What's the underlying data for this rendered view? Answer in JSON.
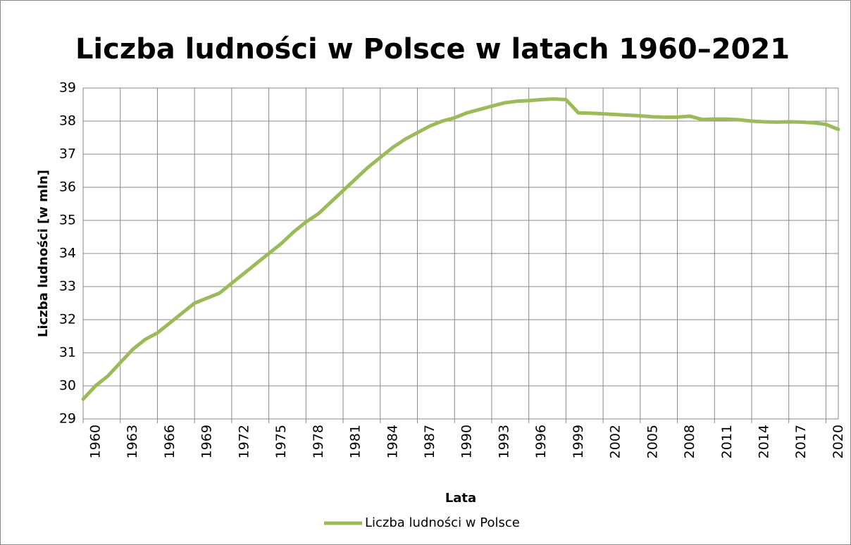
{
  "chart_data": {
    "type": "line",
    "title": "Liczba ludności w Polsce w latach 1960–2021",
    "x_label": "Lata",
    "y_label": "Liczba ludności [w mln]",
    "x": [
      1960,
      1961,
      1962,
      1963,
      1964,
      1965,
      1966,
      1967,
      1968,
      1969,
      1970,
      1971,
      1972,
      1973,
      1974,
      1975,
      1976,
      1977,
      1978,
      1979,
      1980,
      1981,
      1982,
      1983,
      1984,
      1985,
      1986,
      1987,
      1988,
      1989,
      1990,
      1991,
      1992,
      1993,
      1994,
      1995,
      1996,
      1997,
      1998,
      1999,
      2000,
      2001,
      2002,
      2003,
      2004,
      2005,
      2006,
      2007,
      2008,
      2009,
      2010,
      2011,
      2012,
      2013,
      2014,
      2015,
      2016,
      2017,
      2018,
      2019,
      2020,
      2021
    ],
    "series": [
      {
        "name": "Liczba ludności w Polsce",
        "color": "#9bbb59",
        "values": [
          29.6,
          30.0,
          30.3,
          30.7,
          31.1,
          31.4,
          31.6,
          31.9,
          32.2,
          32.5,
          32.65,
          32.8,
          33.1,
          33.4,
          33.7,
          34.0,
          34.3,
          34.65,
          34.95,
          35.2,
          35.55,
          35.9,
          36.25,
          36.6,
          36.9,
          37.2,
          37.45,
          37.65,
          37.85,
          38.0,
          38.1,
          38.25,
          38.35,
          38.45,
          38.55,
          38.6,
          38.62,
          38.65,
          38.67,
          38.65,
          38.25,
          38.24,
          38.22,
          38.2,
          38.18,
          38.16,
          38.13,
          38.12,
          38.12,
          38.15,
          38.05,
          38.06,
          38.06,
          38.04,
          38.0,
          37.98,
          37.97,
          37.98,
          37.97,
          37.95,
          37.9,
          37.75
        ]
      }
    ],
    "xlim": [
      1960,
      2021
    ],
    "xticks": [
      1960,
      1963,
      1966,
      1969,
      1972,
      1975,
      1978,
      1981,
      1984,
      1987,
      1990,
      1993,
      1996,
      1999,
      2002,
      2005,
      2008,
      2011,
      2014,
      2017,
      2020
    ],
    "ylim": [
      29,
      39
    ],
    "yticks": [
      29,
      30,
      31,
      32,
      33,
      34,
      35,
      36,
      37,
      38,
      39
    ],
    "grid": true,
    "legend": "bottom"
  }
}
